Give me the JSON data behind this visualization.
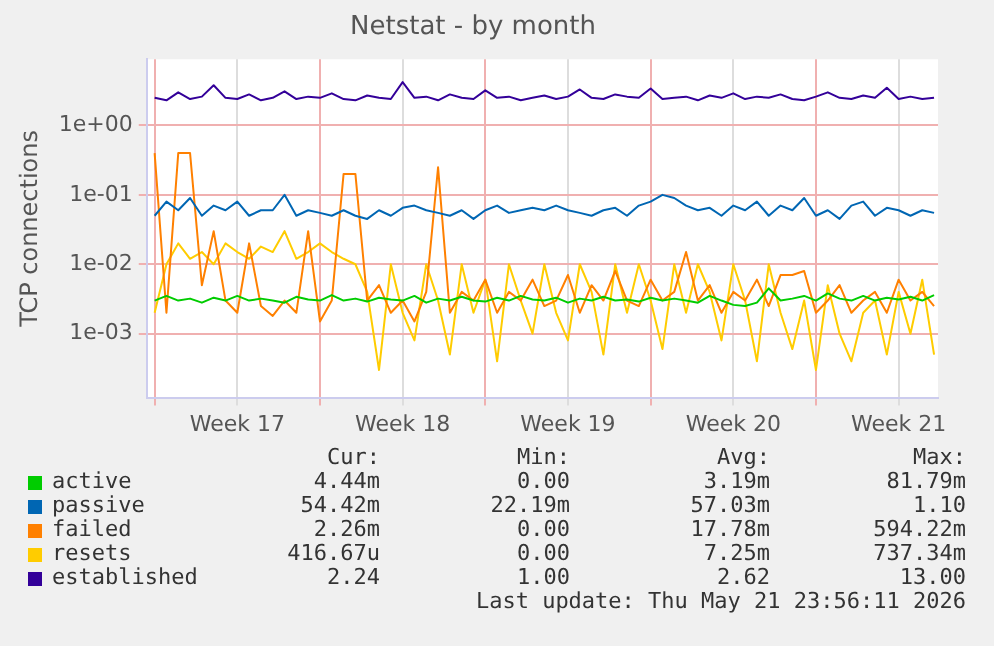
{
  "chart_data": {
    "type": "line",
    "title": "Netstat - by month",
    "ylabel": "TCP connections",
    "log": "y",
    "grid": true,
    "legend": "bottom",
    "marker": "none",
    "line_style": "solid",
    "x": [
      "2026-04-20T00:00",
      "2026-04-20T12:00",
      "2026-04-21T00:00",
      "2026-04-21T12:00",
      "2026-04-22T00:00",
      "2026-04-22T12:00",
      "2026-04-23T00:00",
      "2026-04-23T12:00",
      "2026-04-24T00:00",
      "2026-04-24T12:00",
      "2026-04-25T00:00",
      "2026-04-25T12:00",
      "2026-04-26T00:00",
      "2026-04-26T12:00",
      "2026-04-27T00:00",
      "2026-04-27T12:00",
      "2026-04-28T00:00",
      "2026-04-28T12:00",
      "2026-04-29T00:00",
      "2026-04-29T12:00",
      "2026-04-30T00:00",
      "2026-04-30T12:00",
      "2026-05-01T00:00",
      "2026-05-01T12:00",
      "2026-05-02T00:00",
      "2026-05-02T12:00",
      "2026-05-03T00:00",
      "2026-05-03T12:00",
      "2026-05-04T00:00",
      "2026-05-04T12:00",
      "2026-05-05T00:00",
      "2026-05-05T12:00",
      "2026-05-06T00:00",
      "2026-05-06T12:00",
      "2026-05-07T00:00",
      "2026-05-07T12:00",
      "2026-05-08T00:00",
      "2026-05-08T12:00",
      "2026-05-09T00:00",
      "2026-05-09T12:00",
      "2026-05-10T00:00",
      "2026-05-10T12:00",
      "2026-05-11T00:00",
      "2026-05-11T12:00",
      "2026-05-12T00:00",
      "2026-05-12T12:00",
      "2026-05-13T00:00",
      "2026-05-13T12:00",
      "2026-05-14T00:00",
      "2026-05-14T12:00",
      "2026-05-15T00:00",
      "2026-05-15T12:00",
      "2026-05-16T00:00",
      "2026-05-16T12:00",
      "2026-05-17T00:00",
      "2026-05-17T12:00",
      "2026-05-18T00:00",
      "2026-05-18T12:00",
      "2026-05-19T00:00",
      "2026-05-19T12:00",
      "2026-05-20T00:00",
      "2026-05-20T12:00",
      "2026-05-21T00:00",
      "2026-05-21T12:00",
      "2026-05-22T00:00",
      "2026-05-22T12:00",
      "2026-05-23T00:00"
    ],
    "xlim": [
      "2026-04-19T16:00",
      "2026-05-23T04:00"
    ],
    "xticks": [
      {
        "value": "2026-04-20T00:00",
        "label": null
      },
      {
        "value": "2026-04-23T12:00",
        "label": "Week 17"
      },
      {
        "value": "2026-04-27T00:00",
        "label": null
      },
      {
        "value": "2026-04-30T12:00",
        "label": "Week 18"
      },
      {
        "value": "2026-05-04T00:00",
        "label": null
      },
      {
        "value": "2026-05-07T12:00",
        "label": "Week 19"
      },
      {
        "value": "2026-05-11T00:00",
        "label": null
      },
      {
        "value": "2026-05-14T12:00",
        "label": "Week 20"
      },
      {
        "value": "2026-05-18T00:00",
        "label": null
      },
      {
        "value": "2026-05-21T12:00",
        "label": "Week 21"
      }
    ],
    "ylim": [
      0.00012,
      9
    ],
    "yticks": [
      {
        "value": 0.001,
        "label": "1e-03"
      },
      {
        "value": 0.01,
        "label": "1e-02"
      },
      {
        "value": 0.1,
        "label": "1e-01"
      },
      {
        "value": 1,
        "label": "1e+00"
      }
    ],
    "series": [
      {
        "name": "active",
        "color": "#00cc00",
        "values": [
          0.003,
          0.0035,
          0.003,
          0.0032,
          0.0028,
          0.0033,
          0.003,
          0.0035,
          0.003,
          0.0032,
          0.003,
          0.0028,
          0.0034,
          0.0031,
          0.003,
          0.0036,
          0.003,
          0.0032,
          0.0029,
          0.0033,
          0.0031,
          0.003,
          0.0035,
          0.0028,
          0.0032,
          0.003,
          0.0034,
          0.003,
          0.0029,
          0.0033,
          0.003,
          0.0035,
          0.0031,
          0.003,
          0.0033,
          0.0028,
          0.0032,
          0.003,
          0.0034,
          0.003,
          0.0031,
          0.0029,
          0.0033,
          0.003,
          0.0032,
          0.003,
          0.0028,
          0.0035,
          0.003,
          0.0026,
          0.0025,
          0.0028,
          0.0045,
          0.003,
          0.0032,
          0.0035,
          0.003,
          0.0038,
          0.0032,
          0.003,
          0.0035,
          0.003,
          0.0033,
          0.0031,
          0.0034,
          0.003,
          0.0036
        ]
      },
      {
        "name": "passive",
        "color": "#0066b3",
        "values": [
          0.05,
          0.08,
          0.06,
          0.09,
          0.05,
          0.07,
          0.06,
          0.08,
          0.05,
          0.06,
          0.06,
          0.1,
          0.05,
          0.06,
          0.055,
          0.05,
          0.06,
          0.05,
          0.045,
          0.06,
          0.05,
          0.065,
          0.07,
          0.06,
          0.055,
          0.05,
          0.06,
          0.045,
          0.06,
          0.07,
          0.055,
          0.06,
          0.065,
          0.06,
          0.07,
          0.06,
          0.055,
          0.05,
          0.06,
          0.065,
          0.05,
          0.07,
          0.08,
          0.1,
          0.09,
          0.07,
          0.06,
          0.065,
          0.05,
          0.07,
          0.06,
          0.08,
          0.05,
          0.07,
          0.06,
          0.09,
          0.05,
          0.06,
          0.045,
          0.07,
          0.08,
          0.05,
          0.065,
          0.06,
          0.05,
          0.06,
          0.055
        ]
      },
      {
        "name": "failed",
        "color": "#ff8000",
        "values": [
          0.4,
          0.002,
          0.4,
          0.4,
          0.005,
          0.03,
          0.003,
          0.002,
          0.02,
          0.0025,
          0.0018,
          0.003,
          0.002,
          0.03,
          0.0015,
          0.003,
          0.2,
          0.2,
          0.003,
          0.005,
          0.002,
          0.003,
          0.0015,
          0.004,
          0.25,
          0.002,
          0.004,
          0.003,
          0.006,
          0.002,
          0.004,
          0.003,
          0.006,
          0.0025,
          0.003,
          0.007,
          0.002,
          0.005,
          0.003,
          0.008,
          0.003,
          0.0025,
          0.006,
          0.003,
          0.004,
          0.015,
          0.003,
          0.005,
          0.002,
          0.004,
          0.003,
          0.006,
          0.0025,
          0.007,
          0.007,
          0.008,
          0.002,
          0.003,
          0.005,
          0.002,
          0.003,
          0.004,
          0.002,
          0.006,
          0.003,
          0.004,
          0.0025
        ]
      },
      {
        "name": "resets",
        "color": "#ffcc00",
        "values": [
          0.002,
          0.01,
          0.02,
          0.012,
          0.015,
          0.01,
          0.02,
          0.015,
          0.012,
          0.018,
          0.015,
          0.03,
          0.012,
          0.015,
          0.02,
          0.015,
          0.012,
          0.01,
          0.004,
          0.0003,
          0.01,
          0.002,
          0.0008,
          0.01,
          0.003,
          0.0005,
          0.01,
          0.002,
          0.006,
          0.0004,
          0.01,
          0.003,
          0.001,
          0.01,
          0.002,
          0.0008,
          0.01,
          0.004,
          0.0005,
          0.01,
          0.002,
          0.01,
          0.003,
          0.0006,
          0.01,
          0.002,
          0.01,
          0.004,
          0.0008,
          0.01,
          0.003,
          0.0004,
          0.01,
          0.002,
          0.0006,
          0.003,
          0.0003,
          0.005,
          0.001,
          0.0004,
          0.002,
          0.003,
          0.0005,
          0.004,
          0.001,
          0.006,
          0.0005
        ]
      },
      {
        "name": "established",
        "color": "#330099",
        "values": [
          2.5,
          2.3,
          3.0,
          2.4,
          2.6,
          3.8,
          2.5,
          2.4,
          2.8,
          2.3,
          2.5,
          3.1,
          2.4,
          2.6,
          2.5,
          2.9,
          2.4,
          2.3,
          2.7,
          2.5,
          2.4,
          4.2,
          2.5,
          2.6,
          2.3,
          2.8,
          2.5,
          2.4,
          3.2,
          2.5,
          2.6,
          2.3,
          2.5,
          2.7,
          2.4,
          2.6,
          3.3,
          2.5,
          2.4,
          2.8,
          2.6,
          2.5,
          3.4,
          2.4,
          2.5,
          2.6,
          2.3,
          2.7,
          2.5,
          2.9,
          2.4,
          2.6,
          2.5,
          2.8,
          2.4,
          2.3,
          2.6,
          3.0,
          2.5,
          2.4,
          2.7,
          2.5,
          3.5,
          2.4,
          2.6,
          2.4,
          2.5
        ]
      }
    ],
    "annotations": [
      "Cur:",
      "Min:",
      "Avg:",
      "Max:",
      "4.44m",
      "0.00",
      "3.19m",
      "81.79m",
      "54.42m",
      "22.19m",
      "57.03m",
      "1.10",
      "2.26m",
      "0.00",
      "17.78m",
      "594.22m",
      "416.67u",
      "0.00",
      "7.25m",
      "737.34m",
      "2.24",
      "1.00",
      "2.62",
      "13.00",
      "Last update: Thu May 21 23:56:11 2026"
    ]
  }
}
